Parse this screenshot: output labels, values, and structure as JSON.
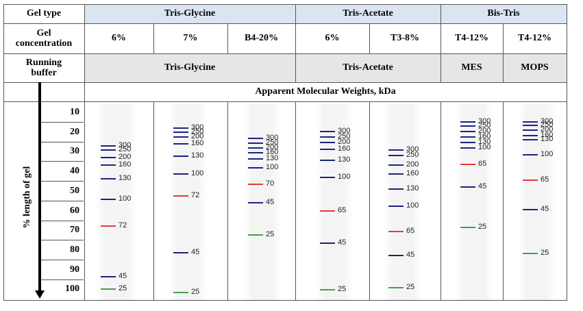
{
  "table": {
    "row_labels": {
      "gel_type": "Gel type",
      "gel_concentration": "Gel\nconcentration",
      "running_buffer": "Running\nbuffer"
    },
    "gel_types": [
      "Tris-Glycine",
      "Tris-Acetate",
      "Bis-Tris"
    ],
    "concentrations": [
      "6%",
      "7%",
      "B4-20%",
      "6%",
      "T3-8%",
      "T4-12%",
      "T4-12%"
    ],
    "buffers": [
      "Tris-Glycine",
      "Tris-Acetate",
      "MES",
      "MOPS"
    ],
    "apparent_mw_label": "Apparent Molecular Weights, kDa",
    "y_axis_label": "% length of gel",
    "percent_ticks": [
      "10",
      "20",
      "30",
      "40",
      "50",
      "60",
      "70",
      "80",
      "90",
      "100"
    ]
  },
  "colors": {
    "standard": "#1a237e",
    "reference_72_70_65": "#e53935",
    "reference_25": "#43a047",
    "header_bg": "#dbe5f1",
    "buffer_bg": "#e6e6e6"
  },
  "lanes": [
    {
      "markers": [
        {
          "label": "300",
          "pct": 21.9,
          "color": "blue"
        },
        {
          "label": "250",
          "pct": 23.9,
          "color": "blue"
        },
        {
          "label": "200",
          "pct": 27.8,
          "color": "blue"
        },
        {
          "label": "160",
          "pct": 31.6,
          "color": "blue"
        },
        {
          "label": "130",
          "pct": 38.6,
          "color": "blue"
        },
        {
          "label": "100",
          "pct": 48.9,
          "color": "blue"
        },
        {
          "label": "72",
          "pct": 62.6,
          "color": "red"
        },
        {
          "label": "45",
          "pct": 88.3,
          "color": "blue"
        },
        {
          "label": "25",
          "pct": 94.5,
          "color": "green"
        }
      ]
    },
    {
      "markers": [
        {
          "label": "300",
          "pct": 13.0,
          "color": "blue"
        },
        {
          "label": "250",
          "pct": 14.9,
          "color": "blue"
        },
        {
          "label": "200",
          "pct": 17.2,
          "color": "blue"
        },
        {
          "label": "160",
          "pct": 21.0,
          "color": "blue"
        },
        {
          "label": "130",
          "pct": 27.1,
          "color": "blue"
        },
        {
          "label": "100",
          "pct": 36.0,
          "color": "blue"
        },
        {
          "label": "72",
          "pct": 47.1,
          "color": "red"
        },
        {
          "label": "45",
          "pct": 76.0,
          "color": "blue"
        },
        {
          "label": "25",
          "pct": 96.1,
          "color": "green"
        }
      ]
    },
    {
      "markers": [
        {
          "label": "300",
          "pct": 18.1,
          "color": "blue"
        },
        {
          "label": "250",
          "pct": 20.4,
          "color": "blue"
        },
        {
          "label": "200",
          "pct": 22.9,
          "color": "blue"
        },
        {
          "label": "160",
          "pct": 25.2,
          "color": "blue"
        },
        {
          "label": "130",
          "pct": 28.6,
          "color": "blue"
        },
        {
          "label": "100",
          "pct": 33.1,
          "color": "blue"
        },
        {
          "label": "70",
          "pct": 41.4,
          "color": "red"
        },
        {
          "label": "45",
          "pct": 50.6,
          "color": "blue"
        },
        {
          "label": "25",
          "pct": 67.1,
          "color": "green"
        }
      ]
    },
    {
      "markers": [
        {
          "label": "300",
          "pct": 14.6,
          "color": "blue"
        },
        {
          "label": "250",
          "pct": 17.2,
          "color": "blue"
        },
        {
          "label": "200",
          "pct": 20.0,
          "color": "blue"
        },
        {
          "label": "160",
          "pct": 23.6,
          "color": "blue"
        },
        {
          "label": "130",
          "pct": 29.0,
          "color": "blue"
        },
        {
          "label": "100",
          "pct": 38.0,
          "color": "blue"
        },
        {
          "label": "65",
          "pct": 54.9,
          "color": "red"
        },
        {
          "label": "45",
          "pct": 71.3,
          "color": "blue"
        },
        {
          "label": "25",
          "pct": 94.8,
          "color": "green"
        }
      ]
    },
    {
      "markers": [
        {
          "label": "300",
          "pct": 23.9,
          "color": "blue"
        },
        {
          "label": "250",
          "pct": 26.9,
          "color": "blue"
        },
        {
          "label": "200",
          "pct": 31.6,
          "color": "blue"
        },
        {
          "label": "160",
          "pct": 36.0,
          "color": "blue"
        },
        {
          "label": "130",
          "pct": 43.7,
          "color": "blue"
        },
        {
          "label": "100",
          "pct": 52.6,
          "color": "blue"
        },
        {
          "label": "65",
          "pct": 65.4,
          "color": "red"
        },
        {
          "label": "45",
          "pct": 77.5,
          "color": "blue"
        },
        {
          "label": "25",
          "pct": 93.6,
          "color": "green"
        }
      ]
    },
    {
      "markers": [
        {
          "label": "300",
          "pct": 9.6,
          "color": "blue"
        },
        {
          "label": "250",
          "pct": 11.9,
          "color": "blue"
        },
        {
          "label": "200",
          "pct": 14.6,
          "color": "blue"
        },
        {
          "label": "160",
          "pct": 17.2,
          "color": "blue"
        },
        {
          "label": "130",
          "pct": 20.0,
          "color": "blue"
        },
        {
          "label": "100",
          "pct": 22.9,
          "color": "blue"
        },
        {
          "label": "65",
          "pct": 31.3,
          "color": "red"
        },
        {
          "label": "45",
          "pct": 42.7,
          "color": "blue"
        },
        {
          "label": "25",
          "pct": 63.3,
          "color": "green"
        }
      ]
    },
    {
      "markers": [
        {
          "label": "300",
          "pct": 9.6,
          "color": "blue"
        },
        {
          "label": "250",
          "pct": 11.6,
          "color": "blue"
        },
        {
          "label": "200",
          "pct": 13.9,
          "color": "blue"
        },
        {
          "label": "160",
          "pct": 16.5,
          "color": "blue"
        },
        {
          "label": "130",
          "pct": 18.8,
          "color": "blue"
        },
        {
          "label": "100",
          "pct": 26.3,
          "color": "blue"
        },
        {
          "label": "65",
          "pct": 39.1,
          "color": "red"
        },
        {
          "label": "45",
          "pct": 54.0,
          "color": "blue"
        },
        {
          "label": "25",
          "pct": 76.3,
          "color": "green"
        }
      ]
    }
  ]
}
